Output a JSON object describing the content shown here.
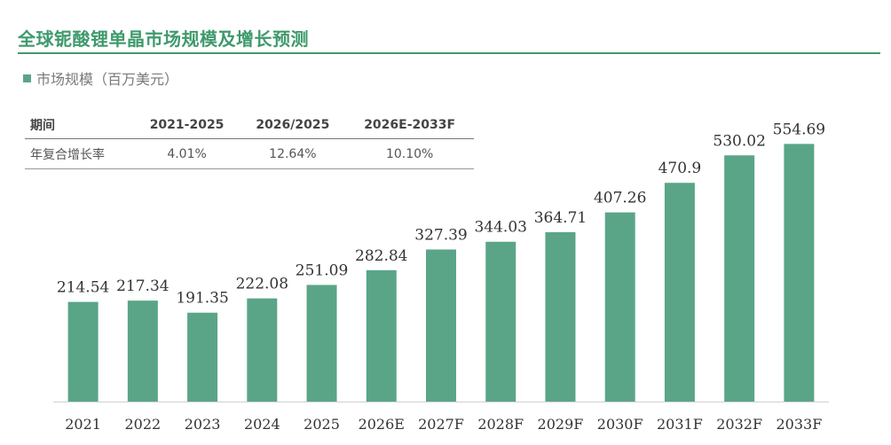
{
  "header": {
    "title": "全球铌酸锂单晶市场规模及增长预测"
  },
  "legend": {
    "label": "市场规模（百万美元）",
    "color": "#5aa587"
  },
  "summary_table": {
    "headers": [
      "期间",
      "2021-2025",
      "2026/2025",
      "2026E-2033F"
    ],
    "rows": [
      [
        "年复合增长率",
        "4.01%",
        "12.64%",
        "10.10%"
      ]
    ]
  },
  "chart_data": {
    "type": "bar",
    "categories": [
      "2021",
      "2022",
      "2023",
      "2024",
      "2025",
      "2026E",
      "2027F",
      "2028F",
      "2029F",
      "2030F",
      "2031F",
      "2032F",
      "2033F"
    ],
    "series": [
      {
        "name": "市场规模（百万美元）",
        "values": [
          214.54,
          217.34,
          191.35,
          222.08,
          251.09,
          282.84,
          327.39,
          344.03,
          364.71,
          407.26,
          470.9,
          530.02,
          554.69
        ]
      }
    ],
    "data_labels": [
      "214.54",
      "217.34",
      "191.35",
      "222.08",
      "251.09",
      "282.84",
      "327.39",
      "344.03",
      "364.71",
      "407.26",
      "470.9",
      "530.02",
      "554.69"
    ],
    "ylim": [
      0,
      600
    ],
    "grid": false,
    "bar_color": "#5aa587"
  }
}
